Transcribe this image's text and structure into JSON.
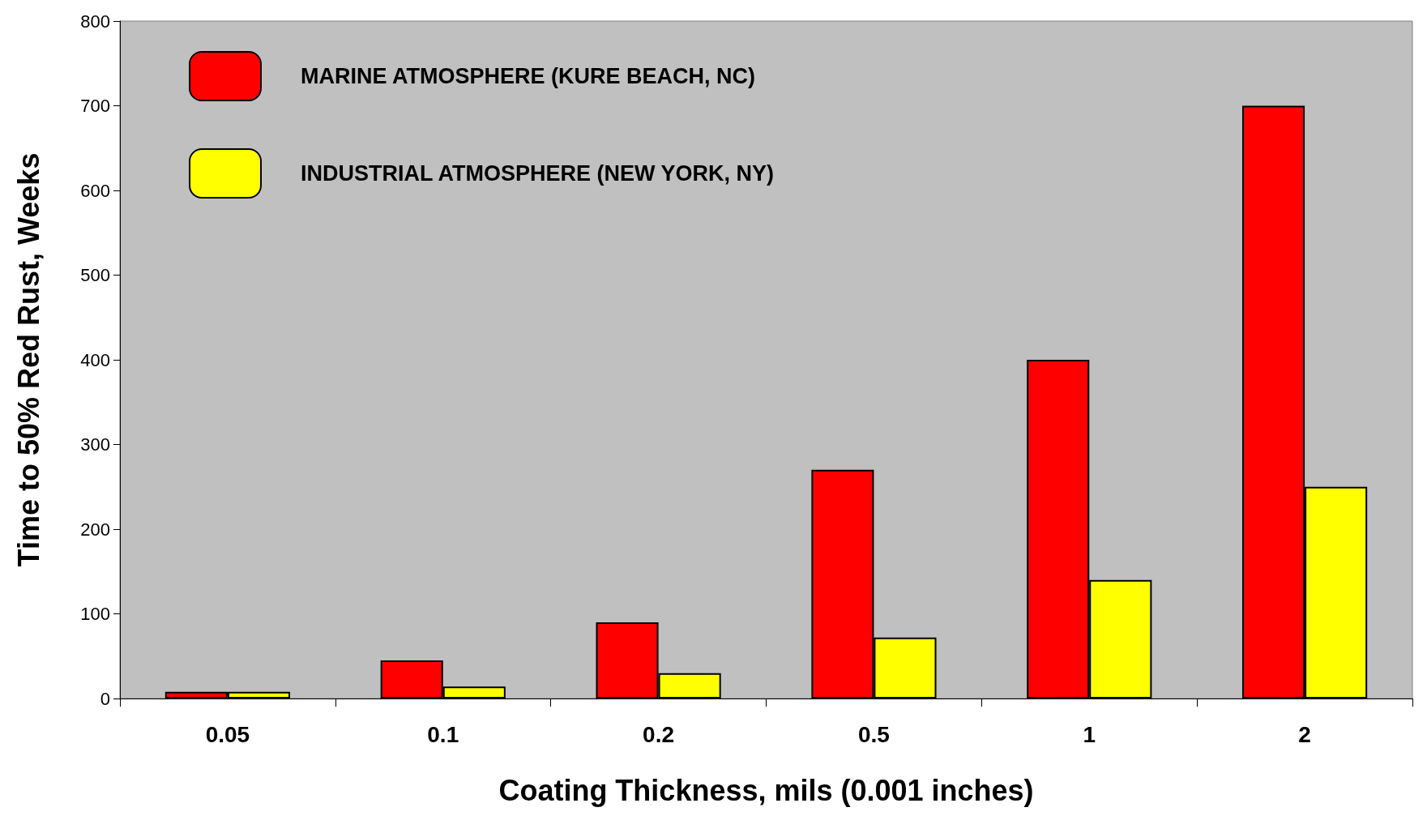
{
  "chart_data": {
    "type": "bar",
    "xlabel": "Coating Thickness, mils (0.001 inches)",
    "ylabel": "Time to 50% Red Rust, Weeks",
    "categories": [
      "0.05",
      "0.1",
      "0.2",
      "0.5",
      "1",
      "2"
    ],
    "series": [
      {
        "name": "MARINE ATMOSPHERE (KURE BEACH, NC)",
        "color": "#ff0000",
        "values": [
          8,
          45,
          90,
          270,
          400,
          700
        ]
      },
      {
        "name": "INDUSTRIAL ATMOSPHERE (NEW YORK, NY)",
        "color": "#ffff00",
        "values": [
          8,
          14,
          30,
          72,
          140,
          250
        ]
      }
    ],
    "ylim": [
      0,
      800
    ],
    "yticks": [
      0,
      100,
      200,
      300,
      400,
      500,
      600,
      700,
      800
    ],
    "grid": false,
    "legend": "top left"
  }
}
